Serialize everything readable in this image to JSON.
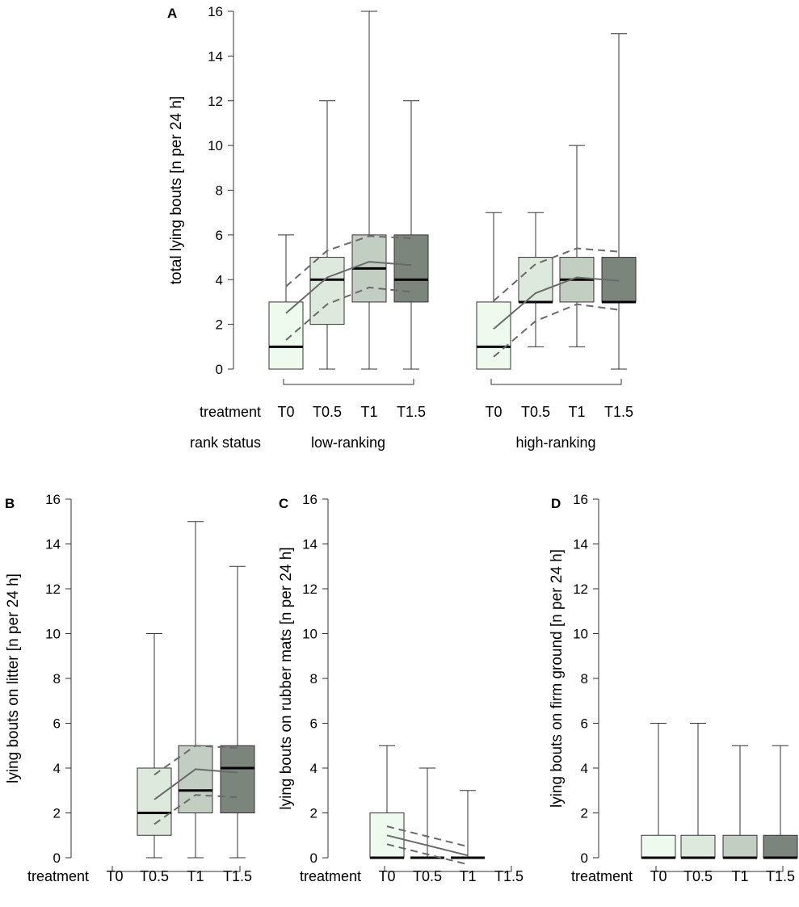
{
  "colors": {
    "box_fills": [
      "#eefaee",
      "#dde9dd",
      "#c3cec3",
      "#7c857c"
    ],
    "line": "#333333",
    "trend": "#6a6a6a"
  },
  "chart_data": [
    {
      "panel": "A",
      "type": "boxplot",
      "ylabel": "total lying bouts [n per 24 h]",
      "ylim": [
        0,
        16
      ],
      "yticks": [
        0,
        2,
        4,
        6,
        8,
        10,
        12,
        14,
        16
      ],
      "row_labels": {
        "treatment": "treatment",
        "rank": "rank status"
      },
      "groups": [
        {
          "label": "low-ranking",
          "categories": [
            "T0",
            "T0.5",
            "T1",
            "T1.5"
          ],
          "boxes": [
            {
              "min": 0,
              "q1": 0,
              "median": 1,
              "q3": 3,
              "max": 6
            },
            {
              "min": 0,
              "q1": 2,
              "median": 4,
              "q3": 5,
              "max": 12
            },
            {
              "min": 0,
              "q1": 3,
              "median": 4.5,
              "q3": 6,
              "max": 16
            },
            {
              "min": 0,
              "q1": 3,
              "median": 4,
              "q3": 6,
              "max": 12
            }
          ],
          "fit": [
            2.5,
            4.1,
            4.8,
            4.65
          ],
          "ci_lower": [
            1.3,
            2.9,
            3.65,
            3.45
          ],
          "ci_upper": [
            3.7,
            5.3,
            5.95,
            5.85
          ]
        },
        {
          "label": "high-ranking",
          "categories": [
            "T0",
            "T0.5",
            "T1",
            "T1.5"
          ],
          "boxes": [
            {
              "min": 0,
              "q1": 0,
              "median": 1,
              "q3": 3,
              "max": 7
            },
            {
              "min": 1,
              "q1": 3,
              "median": 3,
              "q3": 5,
              "max": 7
            },
            {
              "min": 1,
              "q1": 3,
              "median": 4,
              "q3": 5,
              "max": 10
            },
            {
              "min": 0,
              "q1": 3,
              "median": 3,
              "q3": 5,
              "max": 15
            }
          ],
          "fit": [
            1.8,
            3.4,
            4.1,
            3.95
          ],
          "ci_lower": [
            0.55,
            2.15,
            2.9,
            2.65
          ],
          "ci_upper": [
            3.05,
            4.7,
            5.4,
            5.25
          ]
        }
      ]
    },
    {
      "panel": "B",
      "type": "boxplot",
      "ylabel": "lying bouts on litter [n per 24 h]",
      "ylim": [
        0,
        16
      ],
      "yticks": [
        0,
        2,
        4,
        6,
        8,
        10,
        12,
        14,
        16
      ],
      "row_labels": {
        "treatment": "treatment"
      },
      "categories": [
        "T0",
        "T0.5",
        "T1",
        "T1.5"
      ],
      "boxes": [
        null,
        {
          "min": 0,
          "q1": 1,
          "median": 2,
          "q3": 4,
          "max": 10
        },
        {
          "min": 0,
          "q1": 2,
          "median": 3,
          "q3": 5,
          "max": 15
        },
        {
          "min": 0,
          "q1": 2,
          "median": 4,
          "q3": 5,
          "max": 13
        }
      ],
      "fit": [
        null,
        2.6,
        3.95,
        3.8
      ],
      "ci_lower": [
        null,
        1.5,
        2.8,
        2.7
      ],
      "ci_upper": [
        null,
        3.7,
        5.0,
        4.9
      ]
    },
    {
      "panel": "C",
      "type": "boxplot",
      "ylabel": "lying bouts on rubber mats [n per 24 h]",
      "ylim": [
        0,
        16
      ],
      "yticks": [
        0,
        2,
        4,
        6,
        8,
        10,
        12,
        14,
        16
      ],
      "row_labels": {
        "treatment": "treatment"
      },
      "categories": [
        "T0",
        "T0.5",
        "T1",
        "T1.5"
      ],
      "boxes": [
        {
          "min": 0,
          "q1": 0,
          "median": 0,
          "q3": 2,
          "max": 5
        },
        {
          "min": 0,
          "q1": 0,
          "median": 0,
          "q3": 0,
          "max": 4
        },
        {
          "min": 0,
          "q1": 0,
          "median": 0,
          "q3": 0,
          "max": 3
        },
        null
      ],
      "fit": [
        1.0,
        0.55,
        0.1,
        null
      ],
      "ci_lower": [
        0.6,
        0.15,
        -0.3,
        null
      ],
      "ci_upper": [
        1.4,
        0.95,
        0.5,
        null
      ]
    },
    {
      "panel": "D",
      "type": "boxplot",
      "ylabel": "lying bouts on firm ground [n per 24 h]",
      "ylim": [
        0,
        16
      ],
      "yticks": [
        0,
        2,
        4,
        6,
        8,
        10,
        12,
        14,
        16
      ],
      "row_labels": {
        "treatment": "treatment"
      },
      "categories": [
        "T0",
        "T0.5",
        "T1",
        "T1.5"
      ],
      "boxes": [
        {
          "min": 0,
          "q1": 0,
          "median": 0,
          "q3": 1,
          "max": 6
        },
        {
          "min": 0,
          "q1": 0,
          "median": 0,
          "q3": 1,
          "max": 6
        },
        {
          "min": 0,
          "q1": 0,
          "median": 0,
          "q3": 1,
          "max": 5
        },
        {
          "min": 0,
          "q1": 0,
          "median": 0,
          "q3": 1,
          "max": 5
        }
      ],
      "fit": null,
      "ci_lower": null,
      "ci_upper": null
    }
  ]
}
